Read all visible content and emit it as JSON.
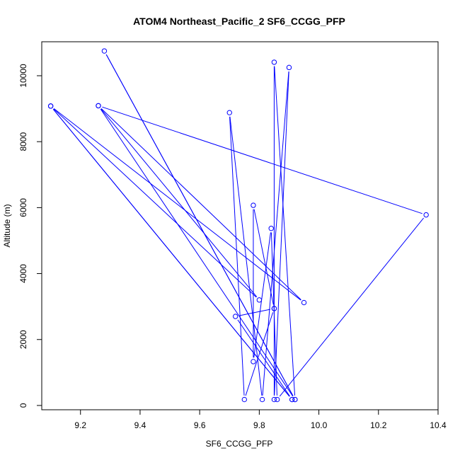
{
  "chart_data": {
    "type": "line",
    "title": "ATOM4 Northeast_Pacific_2 SF6_CCGG_PFP",
    "xlabel": "SF6_CCGG_PFP",
    "ylabel": "Altitude (m)",
    "xlim": [
      9.07,
      10.4
    ],
    "ylim": [
      -130,
      11030
    ],
    "xticks": [
      9.2,
      9.4,
      9.6,
      9.8,
      10.0,
      10.2,
      10.4
    ],
    "xtick_labels": [
      "9.2",
      "9.4",
      "9.6",
      "9.8",
      "10.0",
      "10.2",
      "10.4"
    ],
    "yticks": [
      0,
      2000,
      4000,
      6000,
      8000,
      10000
    ],
    "ytick_labels": [
      "0",
      "2000",
      "4000",
      "6000",
      "8000",
      "10000"
    ],
    "grid": false,
    "legend": "none",
    "series": [
      {
        "color": "#0000ff",
        "marker": "open-circle",
        "points": [
          {
            "x": 9.91,
            "y": 180
          },
          {
            "x": 9.1,
            "y": 9080
          },
          {
            "x": 9.95,
            "y": 3120
          },
          {
            "x": 9.26,
            "y": 9090
          },
          {
            "x": 9.92,
            "y": 180
          },
          {
            "x": 9.28,
            "y": 10750
          },
          {
            "x": 9.92,
            "y": 180
          },
          {
            "x": 9.85,
            "y": 10410
          },
          {
            "x": 9.85,
            "y": 180
          },
          {
            "x": 9.9,
            "y": 10250
          },
          {
            "x": 9.81,
            "y": 180
          },
          {
            "x": 9.7,
            "y": 8880
          },
          {
            "x": 9.75,
            "y": 180
          },
          {
            "x": 9.85,
            "y": 2940
          },
          {
            "x": 9.72,
            "y": 2700
          },
          {
            "x": 9.91,
            "y": 180
          },
          {
            "x": 9.1,
            "y": 9080
          },
          {
            "x": 9.8,
            "y": 3200
          },
          {
            "x": 9.26,
            "y": 9090
          },
          {
            "x": 10.36,
            "y": 5780
          },
          {
            "x": 9.86,
            "y": 180
          },
          {
            "x": 9.84,
            "y": 5370
          },
          {
            "x": 9.78,
            "y": 1330
          },
          {
            "x": 9.78,
            "y": 6070
          },
          {
            "x": 9.85,
            "y": 2940
          }
        ]
      }
    ]
  }
}
